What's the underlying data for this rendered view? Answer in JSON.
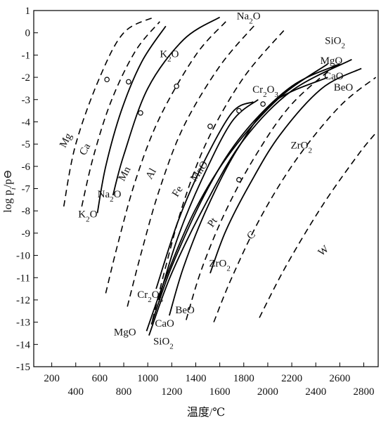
{
  "chart_data": {
    "type": "line",
    "xlabel": "温度/℃",
    "ylabel": "log p_i/p⊖",
    "xlim": [
      50,
      2920
    ],
    "ylim": [
      -15,
      1
    ],
    "x_ticks": [
      {
        "value": 200,
        "label": "200"
      },
      {
        "value": 400,
        "label": "400"
      },
      {
        "value": 600,
        "label": "600"
      },
      {
        "value": 800,
        "label": "800"
      },
      {
        "value": 1000,
        "label": "1000"
      },
      {
        "value": 1200,
        "label": "1200"
      },
      {
        "value": 1400,
        "label": "1400"
      },
      {
        "value": 1600,
        "label": "1600"
      },
      {
        "value": 1800,
        "label": "1800"
      },
      {
        "value": 2000,
        "label": "2000"
      },
      {
        "value": 2200,
        "label": "2200"
      },
      {
        "value": 2400,
        "label": "2400"
      },
      {
        "value": 2600,
        "label": "2600"
      },
      {
        "value": 2800,
        "label": "2800"
      }
    ],
    "y_ticks": [
      {
        "value": 1,
        "label": "1"
      },
      {
        "value": 0,
        "label": "0"
      },
      {
        "value": -1,
        "label": "-1"
      },
      {
        "value": -2,
        "label": "-2"
      },
      {
        "value": -3,
        "label": "-3"
      },
      {
        "value": -4,
        "label": "-4"
      },
      {
        "value": -5,
        "label": "-5"
      },
      {
        "value": -6,
        "label": "-6"
      },
      {
        "value": -7,
        "label": "-7"
      },
      {
        "value": -8,
        "label": "-8"
      },
      {
        "value": -9,
        "label": "-9"
      },
      {
        "value": -10,
        "label": "-10"
      },
      {
        "value": -11,
        "label": "-11"
      },
      {
        "value": -12,
        "label": "-12"
      },
      {
        "value": -13,
        "label": "-13"
      },
      {
        "value": -14,
        "label": "-14"
      },
      {
        "value": -15,
        "label": "-15"
      }
    ],
    "series": [
      {
        "name": "Mg",
        "dash": true,
        "points": [
          [
            300,
            -7.8
          ],
          [
            400,
            -5.0
          ],
          [
            600,
            -2.0
          ],
          [
            800,
            0.0
          ],
          [
            1050,
            0.7
          ]
        ]
      },
      {
        "name": "Ca",
        "dash": true,
        "points": [
          [
            450,
            -7.8
          ],
          [
            550,
            -5.5
          ],
          [
            700,
            -3.0
          ],
          [
            900,
            -0.8
          ],
          [
            1100,
            0.5
          ]
        ]
      },
      {
        "name": "K2O",
        "dash": false,
        "points": [
          [
            580,
            -8.1
          ],
          [
            650,
            -6.0
          ],
          [
            780,
            -3.5
          ],
          [
            950,
            -1.3
          ],
          [
            1150,
            0.3
          ]
        ]
      },
      {
        "name": "Na2O",
        "dash": false,
        "points": [
          [
            710,
            -7.3
          ],
          [
            800,
            -5.5
          ],
          [
            1000,
            -2.5
          ],
          [
            1300,
            -0.3
          ],
          [
            1600,
            0.7
          ]
        ]
      },
      {
        "name": "Mn",
        "dash": true,
        "points": [
          [
            650,
            -11.7
          ],
          [
            750,
            -9.5
          ],
          [
            900,
            -6.6
          ],
          [
            1100,
            -3.8
          ],
          [
            1400,
            -1.0
          ],
          [
            1650,
            0.5
          ]
        ]
      },
      {
        "name": "Al",
        "dash": true,
        "points": [
          [
            830,
            -12.3
          ],
          [
            950,
            -9.8
          ],
          [
            1100,
            -7.0
          ],
          [
            1300,
            -4.2
          ],
          [
            1600,
            -1.5
          ],
          [
            1900,
            0.4
          ]
        ]
      },
      {
        "name": "Fe",
        "dash": true,
        "points": [
          [
            1040,
            -12.9
          ],
          [
            1150,
            -10.5
          ],
          [
            1300,
            -7.6
          ],
          [
            1500,
            -4.8
          ],
          [
            1800,
            -2.0
          ],
          [
            2150,
            0.2
          ]
        ]
      },
      {
        "name": "Cr2O3",
        "dash": false,
        "points": [
          [
            1070,
            -11.5
          ],
          [
            1250,
            -8.5
          ],
          [
            1450,
            -6.0
          ],
          [
            1700,
            -3.6
          ],
          [
            1880,
            -3.1
          ]
        ]
      },
      {
        "name": "MnO",
        "dash": false,
        "points": [
          [
            1090,
            -12.0
          ],
          [
            1250,
            -9.2
          ],
          [
            1450,
            -6.6
          ],
          [
            1700,
            -4.0
          ],
          [
            1920,
            -3.0
          ]
        ]
      },
      {
        "name": "BeO",
        "dash": false,
        "points": [
          [
            1180,
            -12.7
          ],
          [
            1300,
            -10.5
          ],
          [
            1500,
            -7.8
          ],
          [
            1750,
            -5.2
          ],
          [
            2050,
            -3.1
          ],
          [
            2500,
            -2.0
          ]
        ]
      },
      {
        "name": "CaO",
        "dash": false,
        "points": [
          [
            1030,
            -13.1
          ],
          [
            1200,
            -10.5
          ],
          [
            1500,
            -7.0
          ],
          [
            1800,
            -4.5
          ],
          [
            2200,
            -2.4
          ],
          [
            2600,
            -1.4
          ]
        ]
      },
      {
        "name": "MgO",
        "dash": false,
        "points": [
          [
            990,
            -13.4
          ],
          [
            1150,
            -11.0
          ],
          [
            1400,
            -7.9
          ],
          [
            1700,
            -5.3
          ],
          [
            2100,
            -2.9
          ],
          [
            2500,
            -1.4
          ]
        ]
      },
      {
        "name": "SiO2",
        "dash": false,
        "points": [
          [
            1010,
            -13.6
          ],
          [
            1200,
            -10.8
          ],
          [
            1500,
            -7.5
          ],
          [
            1800,
            -4.8
          ],
          [
            2200,
            -2.6
          ],
          [
            2700,
            -1.2
          ]
        ]
      },
      {
        "name": "Pt",
        "dash": true,
        "points": [
          [
            1320,
            -12.9
          ],
          [
            1450,
            -10.6
          ],
          [
            1650,
            -8.0
          ],
          [
            1900,
            -5.5
          ],
          [
            2200,
            -3.2
          ],
          [
            2600,
            -1.3
          ]
        ]
      },
      {
        "name": "ZrO2",
        "dash": false,
        "points": [
          [
            1520,
            -10.8
          ],
          [
            1650,
            -8.9
          ],
          [
            1850,
            -6.8
          ],
          [
            2100,
            -4.6
          ],
          [
            2450,
            -2.5
          ],
          [
            2780,
            -1.6
          ]
        ]
      },
      {
        "name": "C",
        "dash": true,
        "points": [
          [
            1550,
            -13.0
          ],
          [
            1700,
            -11.0
          ],
          [
            1950,
            -8.2
          ],
          [
            2250,
            -5.6
          ],
          [
            2600,
            -3.3
          ],
          [
            2900,
            -2.0
          ]
        ]
      },
      {
        "name": "W",
        "dash": true,
        "points": [
          [
            1930,
            -12.8
          ],
          [
            2150,
            -10.5
          ],
          [
            2450,
            -7.8
          ],
          [
            2750,
            -5.5
          ],
          [
            2900,
            -4.5
          ]
        ]
      }
    ],
    "markers": [
      [
        660,
        -2.1
      ],
      [
        840,
        -2.2
      ],
      [
        940,
        -3.6
      ],
      [
        1240,
        -2.4
      ],
      [
        1520,
        -4.2
      ],
      [
        1760,
        -3.5
      ],
      [
        1960,
        -3.2
      ],
      [
        1760,
        -6.6
      ]
    ],
    "labels": [
      {
        "text": "Mg",
        "x": 340,
        "y": -4.9,
        "rotate": -62
      },
      {
        "text": "Ca",
        "x": 500,
        "y": -5.3,
        "rotate": -62
      },
      {
        "text": "Mn",
        "x": 830,
        "y": -6.4,
        "rotate": -62
      },
      {
        "text": "Al",
        "x": 1050,
        "y": -6.4,
        "rotate": -60
      },
      {
        "text": "Fe",
        "x": 1270,
        "y": -7.2,
        "rotate": -58
      },
      {
        "text": "MnO",
        "x": 1450,
        "y": -6.3,
        "rotate": -55
      },
      {
        "text": "Pt",
        "x": 1560,
        "y": -8.6,
        "rotate": -55
      },
      {
        "text": "C",
        "x": 1880,
        "y": -9.2,
        "rotate": -45
      },
      {
        "text": "W",
        "x": 2480,
        "y": -9.9,
        "rotate": -40
      },
      {
        "text": "K2O",
        "x": 1180,
        "y": -1.1,
        "rotate": 0
      },
      {
        "text": "Na2O",
        "x": 1840,
        "y": 0.6,
        "rotate": 0
      },
      {
        "text": "SiO2",
        "x": 2560,
        "y": -0.5,
        "rotate": 0
      },
      {
        "text": "MgO",
        "x": 2530,
        "y": -1.4,
        "rotate": 0
      },
      {
        "text": "CaO",
        "x": 2550,
        "y": -2.1,
        "rotate": 0
      },
      {
        "text": "BeO",
        "x": 2630,
        "y": -2.6,
        "rotate": 0
      },
      {
        "text": "Cr2O3",
        "x": 1980,
        "y": -2.7,
        "rotate": 0
      },
      {
        "text": "ZrO2",
        "x": 2280,
        "y": -5.2,
        "rotate": 0
      },
      {
        "text": "Na2O",
        "x": 680,
        "y": -7.4,
        "rotate": 0
      },
      {
        "text": "K2O",
        "x": 500,
        "y": -8.3,
        "rotate": 0
      },
      {
        "text": "ZrO2",
        "x": 1600,
        "y": -10.5,
        "rotate": 0
      },
      {
        "text": "Cr2O3",
        "x": 1020,
        "y": -11.9,
        "rotate": 0
      },
      {
        "text": "BeO",
        "x": 1310,
        "y": -12.6,
        "rotate": 0
      },
      {
        "text": "CaO",
        "x": 1140,
        "y": -13.2,
        "rotate": 0
      },
      {
        "text": "MgO",
        "x": 810,
        "y": -13.6,
        "rotate": 0
      },
      {
        "text": "SiO2",
        "x": 1130,
        "y": -14.0,
        "rotate": 0
      }
    ]
  }
}
